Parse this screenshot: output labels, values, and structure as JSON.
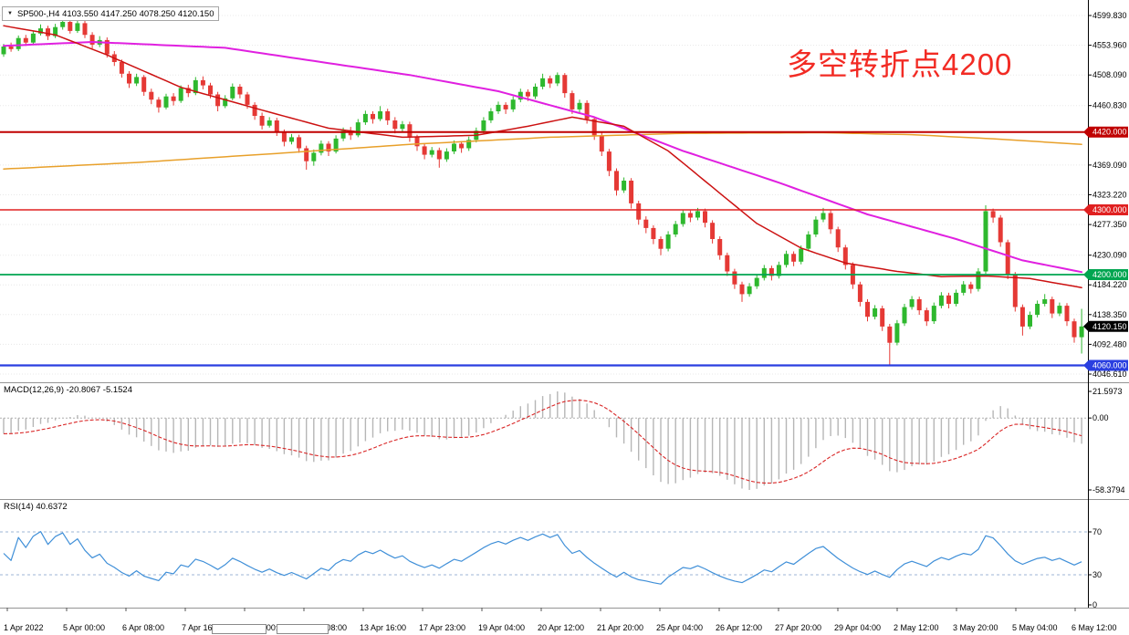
{
  "window": {
    "dropdown_icon": "▼",
    "title_text": "SP500-,H4 4103.550 4147.250 4078.250 4120.150",
    "symbol": "SP500-",
    "timeframe": "H4"
  },
  "annotation": {
    "text": "多空转折点4200",
    "color": "#f22b24"
  },
  "colors": {
    "background": "#ffffff",
    "bull": "#2eb82e",
    "bear": "#e53935",
    "grid": "#e8e8e8",
    "separator": "#949494",
    "axis_text": "#000000"
  },
  "chart_data": {
    "type": "candlestick",
    "symbol": "SP500-",
    "timeframe": "H4",
    "current_bar": {
      "open": 4103.55,
      "high": 4147.25,
      "low": 4078.25,
      "close": 4120.15
    },
    "price_axis_labels": [
      {
        "text": "4599.830",
        "price": 4599.83
      },
      {
        "text": "4553.960",
        "price": 4553.96
      },
      {
        "text": "4508.090",
        "price": 4508.09
      },
      {
        "text": "4460.830",
        "price": 4460.83
      },
      {
        "text": "4369.090",
        "price": 4369.09
      },
      {
        "text": "4323.220",
        "price": 4323.22
      },
      {
        "text": "4277.350",
        "price": 4277.35
      },
      {
        "text": "4230.090",
        "price": 4230.09
      },
      {
        "text": "4184.220",
        "price": 4184.22
      },
      {
        "text": "4138.350",
        "price": 4138.35
      },
      {
        "text": "4092.480",
        "price": 4092.48
      },
      {
        "text": "4046.610",
        "price": 4046.61
      }
    ],
    "hlines": [
      {
        "price": 4420.0,
        "label": "4420.000",
        "color": "#c00000",
        "width": 2
      },
      {
        "price": 4300.0,
        "label": "4300.000",
        "color": "#e02020",
        "width": 1.4
      },
      {
        "price": 4200.0,
        "label": "4200.000",
        "color": "#00a550",
        "width": 1.8
      },
      {
        "price": 4060.0,
        "label": "4060.000",
        "color": "#2a3fe0",
        "width": 2.2
      }
    ],
    "current_price_tag": {
      "text": "4120.150",
      "price": 4120.15,
      "color": "#000000"
    },
    "candles": [
      [
        4540,
        4556,
        4536,
        4552
      ],
      [
        4552,
        4558,
        4544,
        4548
      ],
      [
        4548,
        4569,
        4545,
        4565
      ],
      [
        4565,
        4570,
        4553,
        4558
      ],
      [
        4558,
        4576,
        4555,
        4572
      ],
      [
        4572,
        4586,
        4569,
        4580
      ],
      [
        4580,
        4584,
        4562,
        4568
      ],
      [
        4568,
        4587,
        4565,
        4582
      ],
      [
        4582,
        4598,
        4578,
        4590
      ],
      [
        4590,
        4600,
        4572,
        4576
      ],
      [
        4576,
        4596,
        4573,
        4588
      ],
      [
        4588,
        4592,
        4565,
        4570
      ],
      [
        4570,
        4574,
        4549,
        4555
      ],
      [
        4555,
        4568,
        4551,
        4562
      ],
      [
        4562,
        4566,
        4535,
        4540
      ],
      [
        4540,
        4545,
        4522,
        4528
      ],
      [
        4528,
        4532,
        4504,
        4510
      ],
      [
        4510,
        4514,
        4488,
        4495
      ],
      [
        4495,
        4510,
        4491,
        4505
      ],
      [
        4505,
        4508,
        4476,
        4482
      ],
      [
        4482,
        4487,
        4463,
        4470
      ],
      [
        4470,
        4474,
        4450,
        4458
      ],
      [
        4458,
        4479,
        4455,
        4475
      ],
      [
        4475,
        4480,
        4461,
        4468
      ],
      [
        4468,
        4492,
        4465,
        4488
      ],
      [
        4488,
        4493,
        4474,
        4480
      ],
      [
        4480,
        4505,
        4477,
        4500
      ],
      [
        4500,
        4506,
        4486,
        4492
      ],
      [
        4492,
        4496,
        4472,
        4478
      ],
      [
        4478,
        4482,
        4452,
        4460
      ],
      [
        4460,
        4477,
        4457,
        4472
      ],
      [
        4472,
        4495,
        4469,
        4490
      ],
      [
        4490,
        4494,
        4472,
        4478
      ],
      [
        4478,
        4482,
        4456,
        4462
      ],
      [
        4462,
        4466,
        4439,
        4445
      ],
      [
        4445,
        4450,
        4424,
        4430
      ],
      [
        4430,
        4443,
        4427,
        4438
      ],
      [
        4438,
        4442,
        4414,
        4420
      ],
      [
        4420,
        4424,
        4398,
        4405
      ],
      [
        4405,
        4417,
        4401,
        4412
      ],
      [
        4412,
        4416,
        4388,
        4395
      ],
      [
        4395,
        4399,
        4362,
        4375
      ],
      [
        4375,
        4393,
        4368,
        4388
      ],
      [
        4388,
        4407,
        4384,
        4402
      ],
      [
        4402,
        4406,
        4383,
        4390
      ],
      [
        4390,
        4415,
        4387,
        4410
      ],
      [
        4410,
        4427,
        4406,
        4422
      ],
      [
        4422,
        4428,
        4408,
        4415
      ],
      [
        4415,
        4440,
        4412,
        4435
      ],
      [
        4435,
        4453,
        4431,
        4448
      ],
      [
        4448,
        4452,
        4433,
        4440
      ],
      [
        4440,
        4460,
        4437,
        4452
      ],
      [
        4452,
        4456,
        4431,
        4438
      ],
      [
        4438,
        4443,
        4418,
        4425
      ],
      [
        4425,
        4437,
        4421,
        4432
      ],
      [
        4432,
        4436,
        4405,
        4412
      ],
      [
        4412,
        4416,
        4391,
        4398
      ],
      [
        4398,
        4402,
        4378,
        4385
      ],
      [
        4385,
        4397,
        4381,
        4392
      ],
      [
        4392,
        4396,
        4365,
        4378
      ],
      [
        4378,
        4395,
        4374,
        4390
      ],
      [
        4390,
        4407,
        4386,
        4402
      ],
      [
        4402,
        4406,
        4388,
        4395
      ],
      [
        4395,
        4413,
        4391,
        4408
      ],
      [
        4408,
        4427,
        4404,
        4422
      ],
      [
        4422,
        4443,
        4418,
        4438
      ],
      [
        4438,
        4457,
        4434,
        4452
      ],
      [
        4452,
        4467,
        4448,
        4462
      ],
      [
        4462,
        4466,
        4448,
        4455
      ],
      [
        4455,
        4475,
        4451,
        4470
      ],
      [
        4470,
        4487,
        4466,
        4482
      ],
      [
        4482,
        4486,
        4468,
        4475
      ],
      [
        4475,
        4495,
        4471,
        4490
      ],
      [
        4490,
        4510,
        4486,
        4503
      ],
      [
        4503,
        4507,
        4488,
        4495
      ],
      [
        4495,
        4512,
        4491,
        4508
      ],
      [
        4508,
        4511,
        4473,
        4480
      ],
      [
        4480,
        4484,
        4448,
        4455
      ],
      [
        4455,
        4470,
        4450,
        4465
      ],
      [
        4465,
        4469,
        4433,
        4440
      ],
      [
        4440,
        4444,
        4408,
        4415
      ],
      [
        4415,
        4419,
        4383,
        4390
      ],
      [
        4390,
        4394,
        4352,
        4360
      ],
      [
        4360,
        4364,
        4322,
        4330
      ],
      [
        4330,
        4350,
        4326,
        4345
      ],
      [
        4345,
        4349,
        4302,
        4310
      ],
      [
        4310,
        4314,
        4277,
        4285
      ],
      [
        4285,
        4290,
        4264,
        4272
      ],
      [
        4272,
        4276,
        4247,
        4255
      ],
      [
        4255,
        4259,
        4230,
        4240
      ],
      [
        4240,
        4267,
        4236,
        4262
      ],
      [
        4262,
        4283,
        4258,
        4278
      ],
      [
        4278,
        4300,
        4274,
        4295
      ],
      [
        4295,
        4299,
        4281,
        4288
      ],
      [
        4288,
        4303,
        4284,
        4298
      ],
      [
        4298,
        4302,
        4273,
        4280
      ],
      [
        4280,
        4284,
        4248,
        4255
      ],
      [
        4255,
        4259,
        4223,
        4230
      ],
      [
        4230,
        4234,
        4198,
        4205
      ],
      [
        4205,
        4209,
        4178,
        4185
      ],
      [
        4185,
        4189,
        4158,
        4170
      ],
      [
        4170,
        4187,
        4166,
        4182
      ],
      [
        4182,
        4200,
        4178,
        4195
      ],
      [
        4195,
        4215,
        4191,
        4210
      ],
      [
        4210,
        4214,
        4191,
        4198
      ],
      [
        4198,
        4220,
        4194,
        4215
      ],
      [
        4215,
        4237,
        4211,
        4232
      ],
      [
        4232,
        4236,
        4213,
        4220
      ],
      [
        4220,
        4245,
        4216,
        4240
      ],
      [
        4240,
        4267,
        4236,
        4262
      ],
      [
        4262,
        4290,
        4258,
        4285
      ],
      [
        4285,
        4303,
        4281,
        4295
      ],
      [
        4295,
        4299,
        4263,
        4270
      ],
      [
        4270,
        4274,
        4235,
        4242
      ],
      [
        4242,
        4246,
        4208,
        4215
      ],
      [
        4215,
        4219,
        4178,
        4185
      ],
      [
        4185,
        4189,
        4151,
        4158
      ],
      [
        4158,
        4162,
        4128,
        4135
      ],
      [
        4135,
        4153,
        4131,
        4148
      ],
      [
        4148,
        4152,
        4113,
        4120
      ],
      [
        4120,
        4124,
        4060,
        4095
      ],
      [
        4095,
        4130,
        4091,
        4125
      ],
      [
        4125,
        4155,
        4121,
        4150
      ],
      [
        4150,
        4167,
        4146,
        4162
      ],
      [
        4162,
        4166,
        4138,
        4145
      ],
      [
        4145,
        4149,
        4121,
        4128
      ],
      [
        4128,
        4157,
        4124,
        4152
      ],
      [
        4152,
        4173,
        4148,
        4168
      ],
      [
        4168,
        4172,
        4148,
        4155
      ],
      [
        4155,
        4177,
        4151,
        4172
      ],
      [
        4172,
        4190,
        4168,
        4185
      ],
      [
        4185,
        4189,
        4171,
        4178
      ],
      [
        4178,
        4210,
        4174,
        4205
      ],
      [
        4205,
        4307,
        4201,
        4298
      ],
      [
        4298,
        4302,
        4280,
        4288
      ],
      [
        4288,
        4292,
        4243,
        4250
      ],
      [
        4250,
        4254,
        4193,
        4200
      ],
      [
        4200,
        4204,
        4143,
        4150
      ],
      [
        4150,
        4154,
        4106,
        4120
      ],
      [
        4120,
        4143,
        4116,
        4138
      ],
      [
        4138,
        4160,
        4134,
        4155
      ],
      [
        4155,
        4170,
        4151,
        4162
      ],
      [
        4162,
        4166,
        4133,
        4140
      ],
      [
        4140,
        4157,
        4136,
        4152
      ],
      [
        4152,
        4156,
        4121,
        4128
      ],
      [
        4128,
        4132,
        4095,
        4103.55
      ],
      [
        4103.55,
        4147.25,
        4078.25,
        4120.15
      ]
    ],
    "ma_lines": [
      {
        "name": "ma-slow-orange",
        "color": "#e8a02a",
        "width": 1.5,
        "points": [
          [
            0,
            4363
          ],
          [
            18,
            4373
          ],
          [
            37,
            4387
          ],
          [
            55,
            4401
          ],
          [
            74,
            4412
          ],
          [
            92,
            4418
          ],
          [
            111,
            4419
          ],
          [
            123,
            4416
          ],
          [
            135,
            4409
          ],
          [
            146,
            4401
          ]
        ]
      },
      {
        "name": "ma-slow-magenta",
        "color": "#e020e0",
        "width": 2,
        "points": [
          [
            0,
            4553
          ],
          [
            12,
            4559
          ],
          [
            30,
            4550
          ],
          [
            43,
            4528
          ],
          [
            55,
            4508
          ],
          [
            67,
            4483
          ],
          [
            80,
            4443
          ],
          [
            92,
            4391
          ],
          [
            105,
            4342
          ],
          [
            117,
            4293
          ],
          [
            129,
            4255
          ],
          [
            138,
            4222
          ],
          [
            146,
            4204
          ]
        ]
      },
      {
        "name": "ma-mid-red",
        "color": "#cc1111",
        "width": 1.5,
        "points": [
          [
            0,
            4584
          ],
          [
            7,
            4570
          ],
          [
            14,
            4539
          ],
          [
            24,
            4489
          ],
          [
            34,
            4457
          ],
          [
            44,
            4426
          ],
          [
            54,
            4412
          ],
          [
            64,
            4415
          ],
          [
            71,
            4429
          ],
          [
            77,
            4443
          ],
          [
            84,
            4429
          ],
          [
            90,
            4391
          ],
          [
            96,
            4335
          ],
          [
            102,
            4279
          ],
          [
            108,
            4241
          ],
          [
            114,
            4218
          ],
          [
            121,
            4205
          ],
          [
            127,
            4197
          ],
          [
            133,
            4198
          ],
          [
            139,
            4194
          ],
          [
            146,
            4180
          ]
        ]
      }
    ],
    "macd": {
      "label": "MACD(12,26,9) -20.8067 -5.1524",
      "fast": 12,
      "slow": 26,
      "signal_period": 9,
      "main_value": -20.8067,
      "signal_value": -5.1524,
      "hist_color": "#b6b6b6",
      "signal_color": "#d92626",
      "axis": {
        "max": 21.5973,
        "max_label": "21.5973",
        "zero_label": "0.00",
        "min": -58.3794,
        "min_label": "-58.3794"
      }
    },
    "rsi": {
      "label": "RSI(14) 40.6372",
      "period": 14,
      "value": 40.6372,
      "levels": [
        70,
        30
      ],
      "line_color": "#3f8fd8",
      "level_color": "#9db5d6",
      "axis_labels": [
        {
          "text": "70",
          "value": 70
        },
        {
          "text": "30",
          "value": 30
        },
        {
          "text": "0",
          "value": 0
        }
      ]
    },
    "time_axis_labels": [
      "1 Apr 2022",
      "5 Apr 00:00",
      "6 Apr 08:00",
      "7 Apr 16:00",
      "11 Apr 00:00",
      "12 Apr 08:00",
      "13 Apr 16:00",
      "17 Apr 23:00",
      "19 Apr 04:00",
      "20 Apr 12:00",
      "21 Apr 20:00",
      "25 Apr 04:00",
      "26 Apr 12:00",
      "27 Apr 20:00",
      "29 Apr 04:00",
      "2 May 12:00",
      "3 May 20:00",
      "5 May 04:00",
      "6 May 12:00"
    ]
  }
}
